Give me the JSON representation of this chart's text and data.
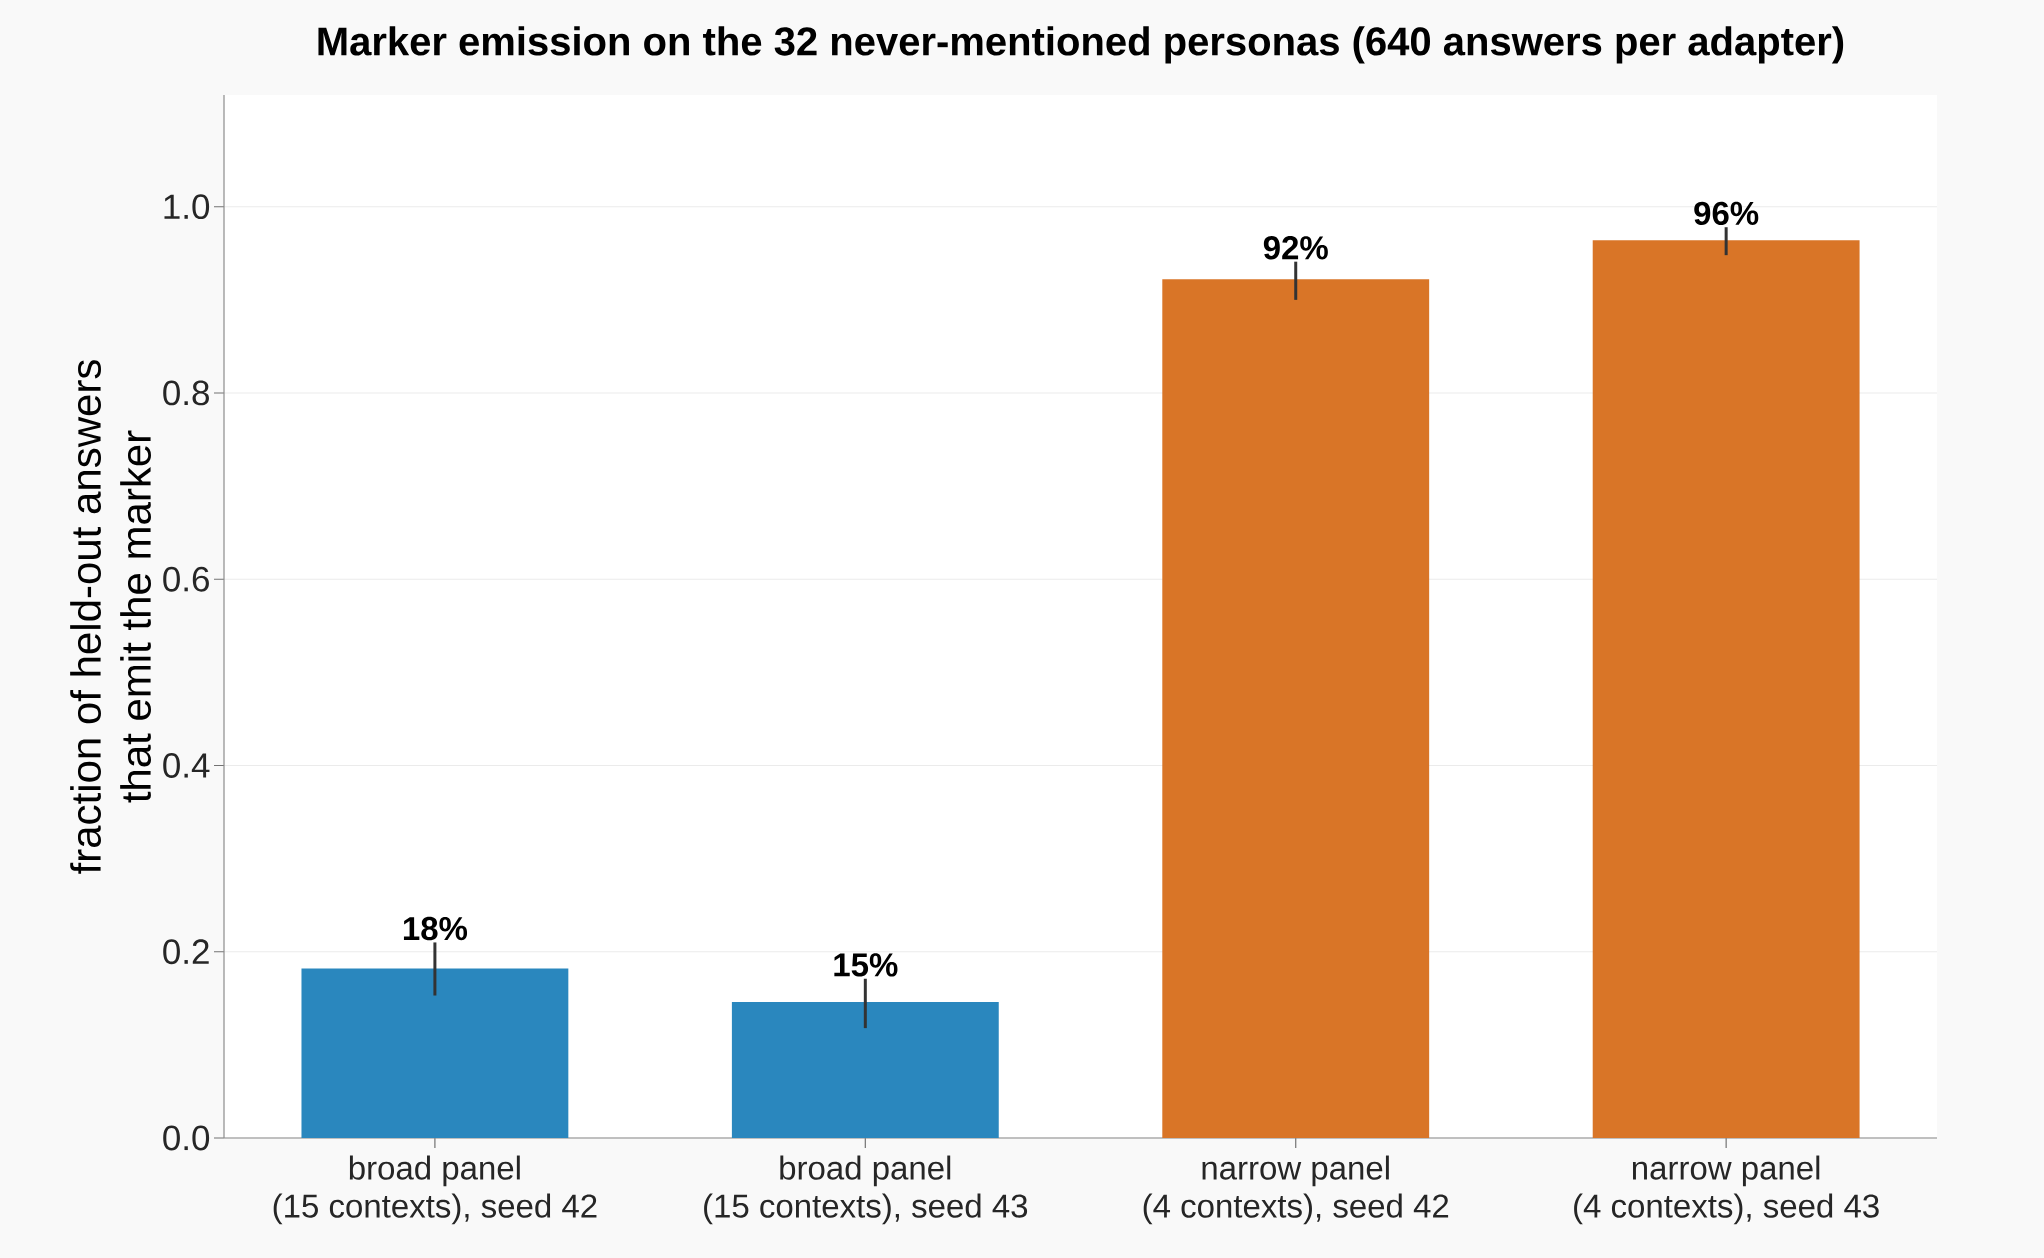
{
  "chart_data": {
    "type": "bar",
    "title": "Marker emission on the 32 never-mentioned personas (640 answers per adapter)",
    "ylabel": "fraction of held-out answers\nthat emit the marker",
    "categories": [
      "broad panel\n(15 contexts), seed 42",
      "broad panel\n(15 contexts), seed 43",
      "narrow panel\n(4 contexts), seed 42",
      "narrow panel\n(4 contexts), seed 43"
    ],
    "values": [
      0.182,
      0.146,
      0.922,
      0.964
    ],
    "colors": [
      "#2a87be",
      "#2a87be",
      "#d97527",
      "#d97527"
    ],
    "errors": [
      [
        0.153,
        0.21
      ],
      [
        0.118,
        0.171
      ],
      [
        0.9,
        0.941
      ],
      [
        0.948,
        0.978
      ]
    ],
    "value_labels": [
      "18%",
      "15%",
      "92%",
      "96%"
    ],
    "ylim": [
      0,
      1.12
    ],
    "yticks": [
      {
        "value": 0,
        "label": "0.0"
      },
      {
        "value": 0.2,
        "label": "0.2"
      },
      {
        "value": 0.4,
        "label": "0.4"
      },
      {
        "value": 0.6,
        "label": "0.6"
      },
      {
        "value": 0.8,
        "label": "0.8"
      },
      {
        "value": 1.0,
        "label": "1.0"
      }
    ],
    "grid": "y"
  }
}
